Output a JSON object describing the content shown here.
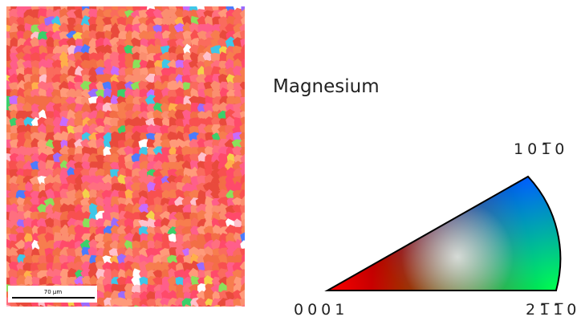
{
  "scale_bar": {
    "label": "70 µm"
  },
  "legend": {
    "title": "Magnesium",
    "corners": {
      "top": "101̅0",
      "left": "0001",
      "right": "21̅1̅0"
    }
  }
}
